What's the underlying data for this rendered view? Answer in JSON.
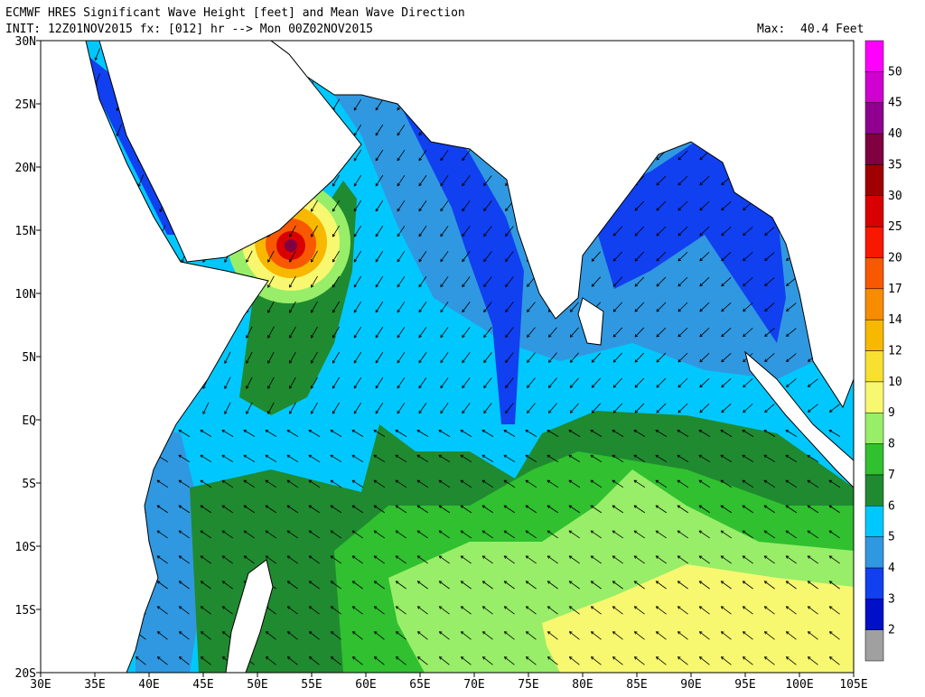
{
  "header": {
    "title": "ECMWF HRES Significant Wave Height [feet] and Mean Wave Direction",
    "init": "INIT: 12Z01NOV2015 fx: [012] hr --> Mon 00Z02NOV2015",
    "max_label": "Max:",
    "max_value": "40.4 Feet"
  },
  "map": {
    "lat_labels": [
      "30N",
      "25N",
      "20N",
      "15N",
      "10N",
      "5N",
      "EQ",
      "5S",
      "10S",
      "15S",
      "20S"
    ],
    "lon_labels": [
      "30E",
      "35E",
      "40E",
      "45E",
      "50E",
      "55E",
      "60E",
      "65E",
      "70E",
      "75E",
      "80E",
      "85E",
      "90E",
      "95E",
      "100E",
      "105E"
    ]
  },
  "colorbar": {
    "labels": [
      "2",
      "3",
      "4",
      "5",
      "6",
      "7",
      "8",
      "9",
      "10",
      "12",
      "14",
      "17",
      "20",
      "25",
      "30",
      "35",
      "40",
      "45",
      "50"
    ],
    "colors": [
      "#a0a0a0",
      "#0010c8",
      "#1040f0",
      "#3098e0",
      "#00c8ff",
      "#208a30",
      "#30c030",
      "#98ee68",
      "#f8f870",
      "#f8e030",
      "#f8b800",
      "#f88c00",
      "#f85800",
      "#f81800",
      "#d80000",
      "#a00000",
      "#800040",
      "#900090",
      "#d000d0",
      "#ff00ff"
    ]
  }
}
